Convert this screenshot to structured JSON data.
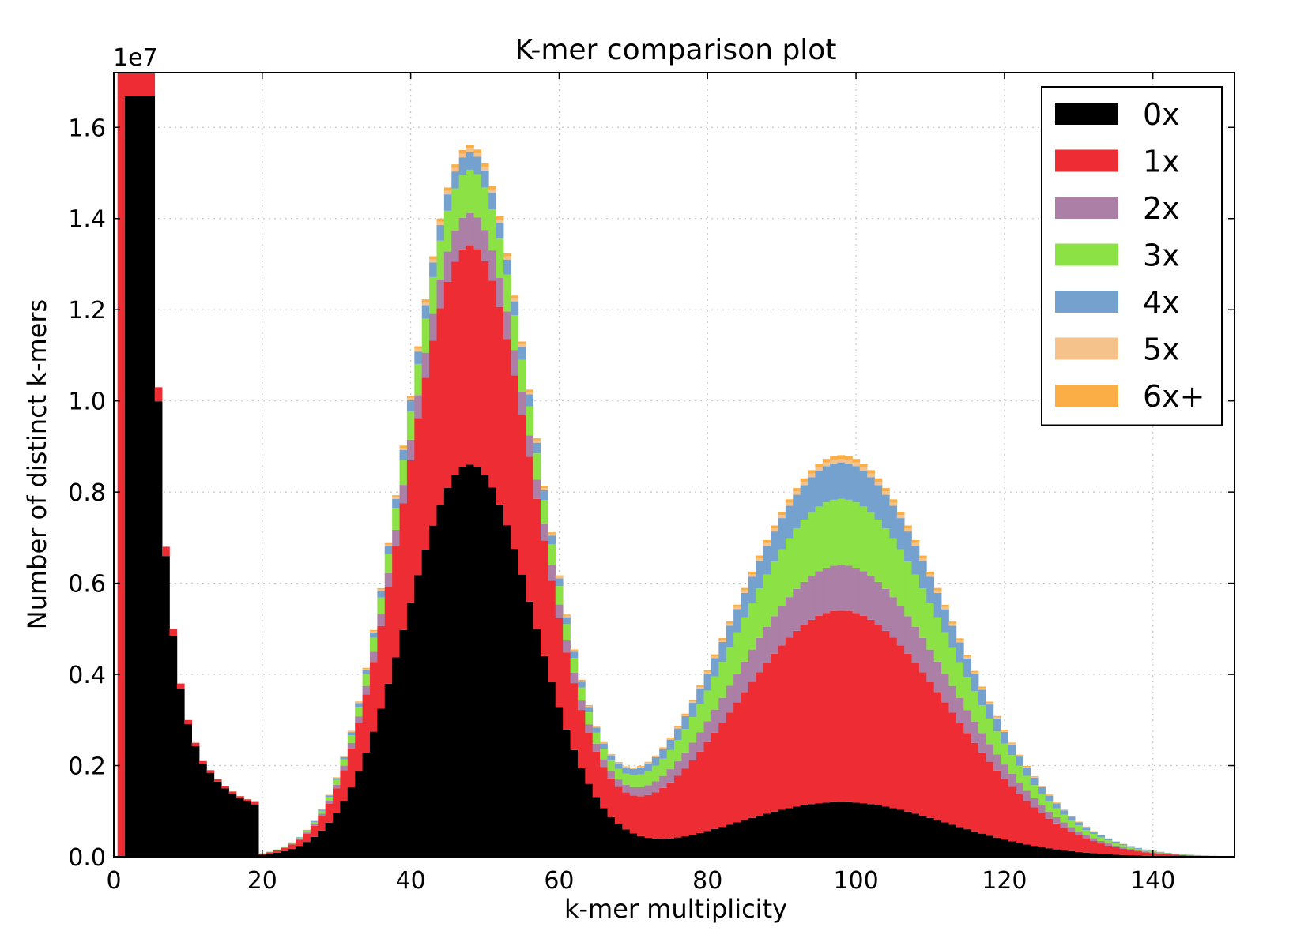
{
  "chart_data": {
    "type": "bar",
    "stacked": true,
    "histogram": true,
    "title": "K-mer comparison plot",
    "xlabel": "k-mer multiplicity",
    "ylabel": "Number of distinct k-mers",
    "y_offset_label": "1e7",
    "xlim": [
      0,
      151
    ],
    "ylim": [
      0,
      17200000
    ],
    "xticks": [
      0,
      20,
      40,
      60,
      80,
      100,
      120,
      140
    ],
    "xtick_labels": [
      "0",
      "20",
      "40",
      "60",
      "80",
      "100",
      "120",
      "140"
    ],
    "yticks": [
      0,
      2000000,
      4000000,
      6000000,
      8000000,
      10000000,
      12000000,
      14000000,
      16000000
    ],
    "ytick_labels": [
      "0.0",
      "0.2",
      "0.4",
      "0.6",
      "0.8",
      "1.0",
      "1.2",
      "1.4",
      "1.6"
    ],
    "grid": true,
    "legend_position": "top-right",
    "bin_width": 1,
    "series_names": [
      "0x",
      "1x",
      "2x",
      "3x",
      "4x",
      "5x",
      "6x+"
    ],
    "colors": [
      "#000000",
      "#ee2c34",
      "#ac7fa7",
      "#8ce145",
      "#75a1cf",
      "#f4c28a",
      "#fbae45"
    ],
    "components_note_free": true,
    "model": {
      "error_peak": {
        "x_start": 1,
        "values": [
          17200000,
          17200000,
          17200000,
          17200000,
          17200000,
          10300000,
          6800000,
          5000000,
          3800000,
          3000000,
          2500000,
          2100000,
          1900000,
          1700000,
          1550000,
          1430000,
          1330000,
          1260000,
          1200000
        ]
      },
      "peak1": {
        "mean": 48,
        "sd": 8.6,
        "zero_x": 8600000,
        "one_x": 4800000,
        "two_x": 700000,
        "three_x": 950000,
        "four_x": 380000,
        "five_x": 80000,
        "six_plus": 80000
      },
      "peak2": {
        "mean": 98,
        "sd": 14.5,
        "zero_x": 1200000,
        "one_x": 4200000,
        "two_x": 1000000,
        "three_x": 1450000,
        "four_x": 800000,
        "five_x": 80000,
        "six_plus": 80000
      }
    }
  },
  "legend": {
    "items": [
      {
        "label": "0x",
        "color": "#000000"
      },
      {
        "label": "1x",
        "color": "#ee2c34"
      },
      {
        "label": "2x",
        "color": "#ac7fa7"
      },
      {
        "label": "3x",
        "color": "#8ce145"
      },
      {
        "label": "4x",
        "color": "#75a1cf"
      },
      {
        "label": "5x",
        "color": "#f4c28a"
      },
      {
        "label": "6x+",
        "color": "#fbae45"
      }
    ]
  }
}
